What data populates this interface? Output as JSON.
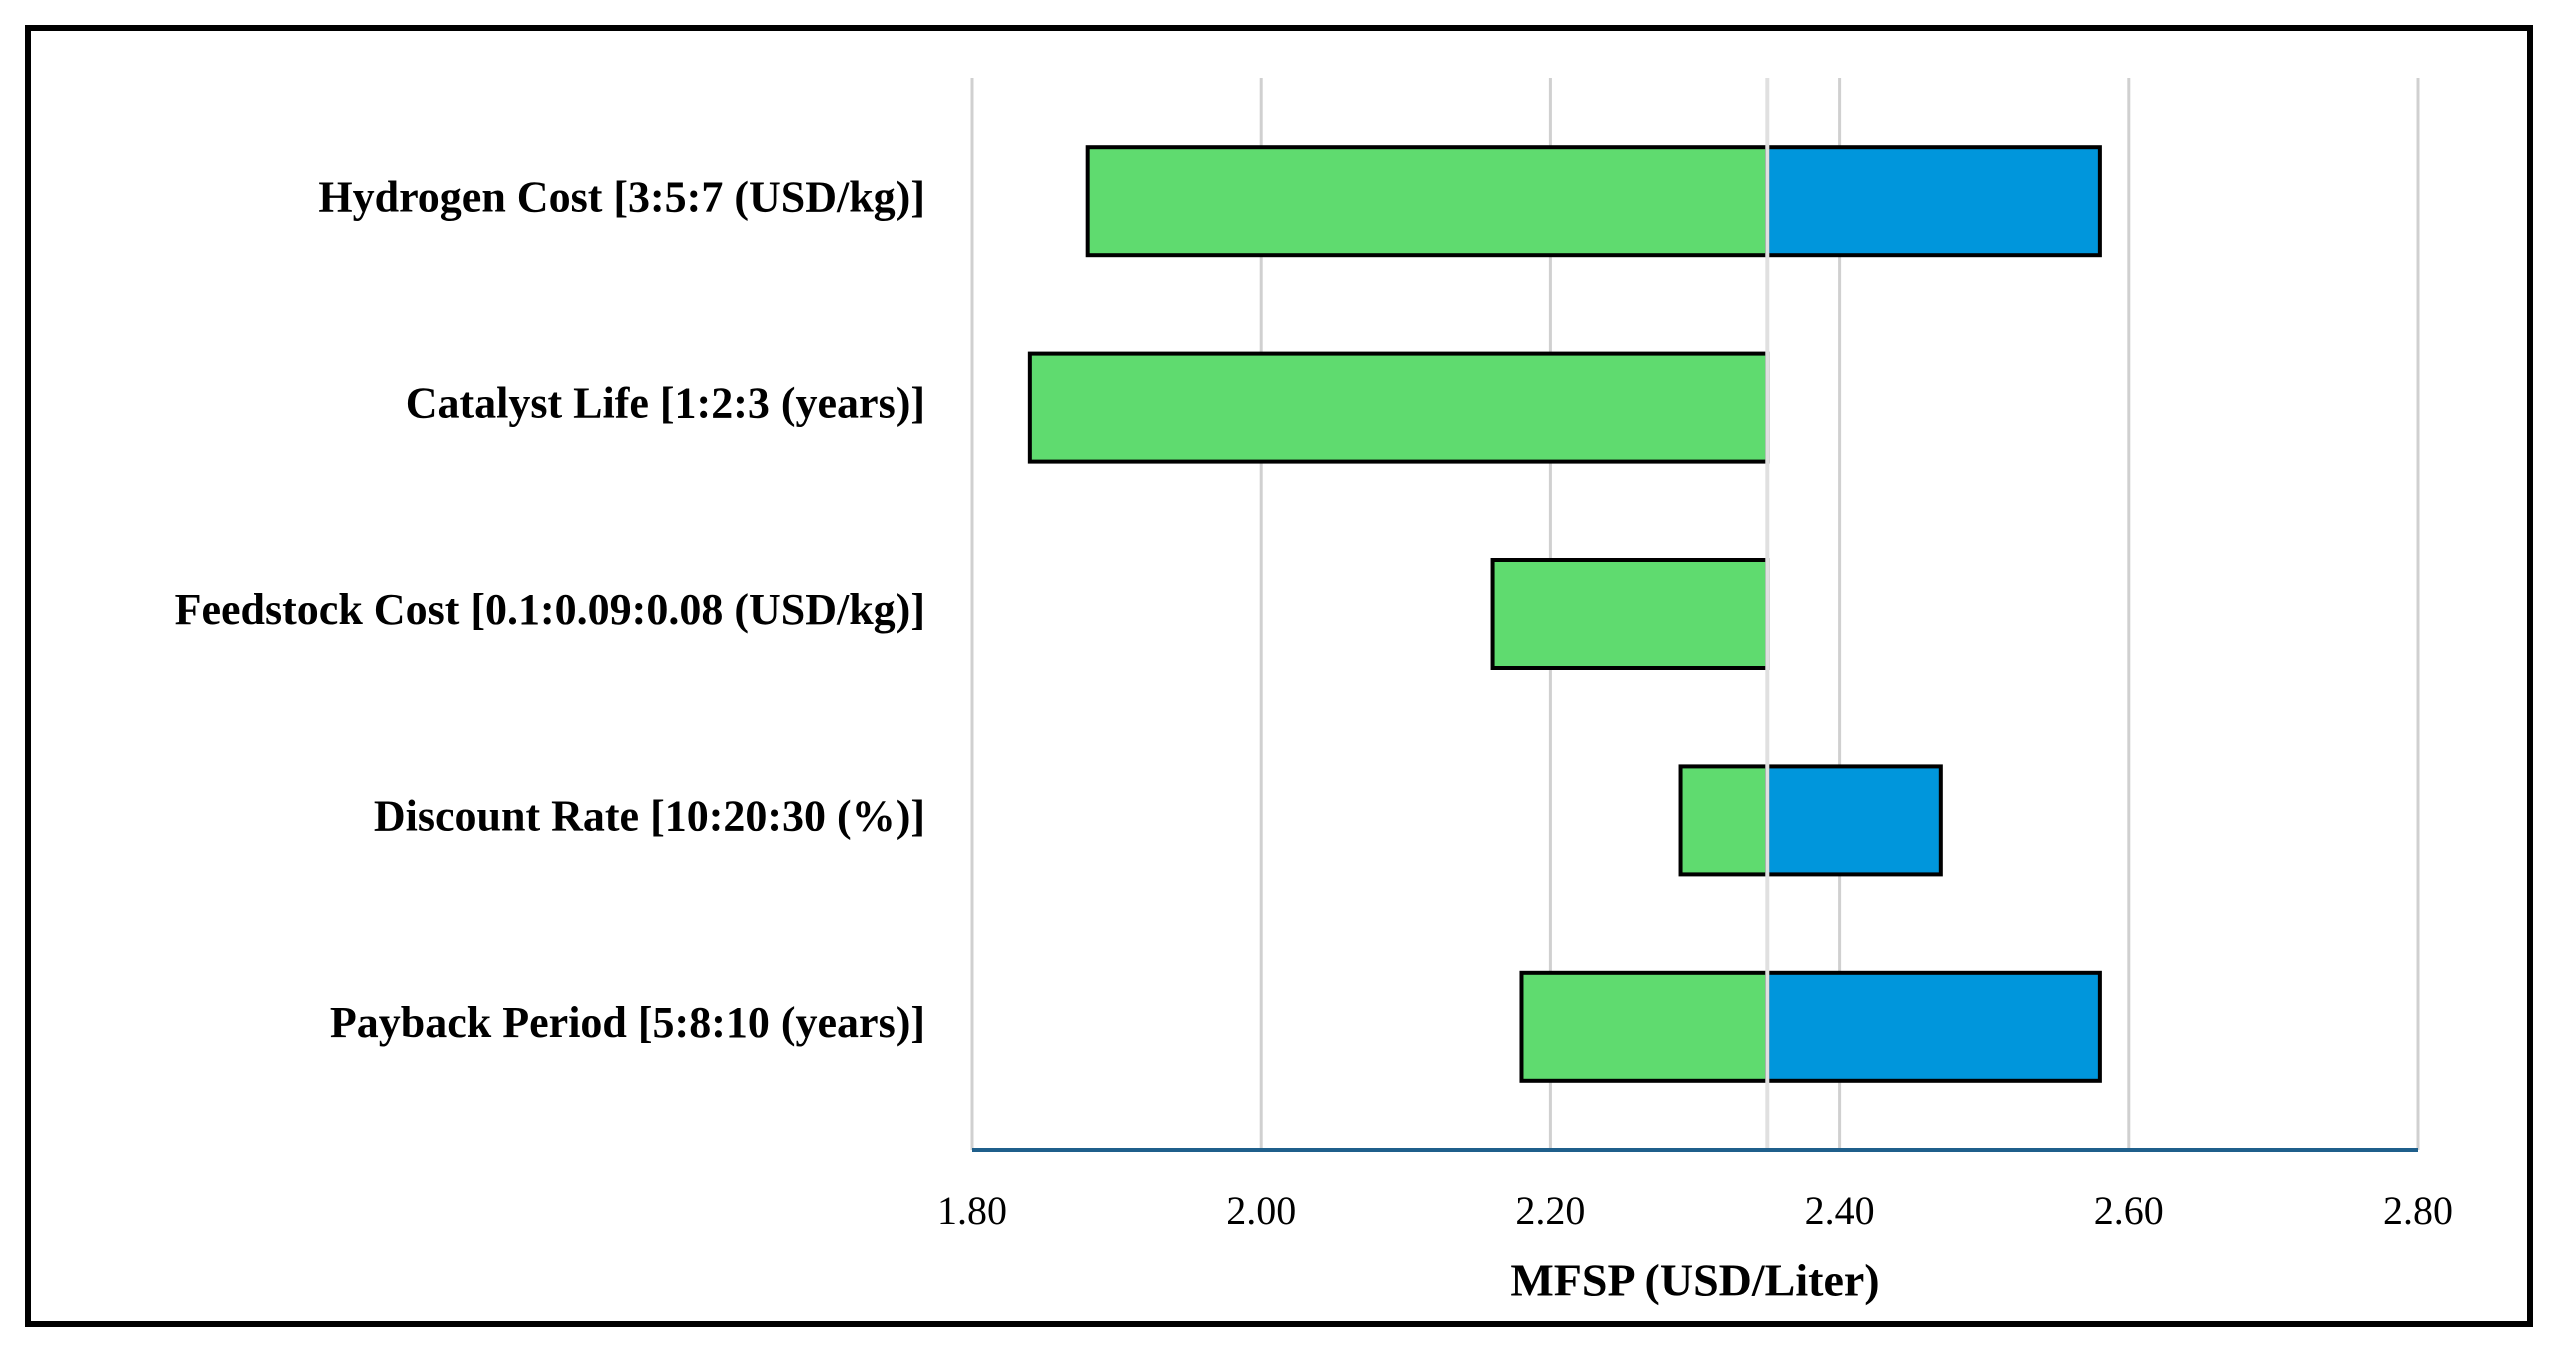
{
  "chart_data": {
    "type": "tornado",
    "x_label": "MFSP (USD/Liter)",
    "categories": [
      "Hydrogen Cost [3:5:7 (USD/kg)]",
      "Catalyst Life [1:2:3 (years)]",
      "Feedstock Cost [0.1:0.09:0.08 (USD/kg)]",
      "Discount Rate [10:20:30 (%)]",
      "Payback Period [5:8:10 (years)]"
    ],
    "base": 2.35,
    "series": [
      {
        "color": "#5fdb6f",
        "values": [
          1.88,
          1.84,
          2.16,
          2.29,
          2.18
        ]
      },
      {
        "color": "#0096dc",
        "values": [
          2.58,
          null,
          null,
          2.47,
          2.58
        ]
      }
    ],
    "xlim": [
      1.8,
      2.8
    ],
    "xticks": [
      {
        "value": 1.8,
        "label": "1.80"
      },
      {
        "value": 2.0,
        "label": "2.00"
      },
      {
        "value": 2.2,
        "label": "2.20"
      },
      {
        "value": 2.4,
        "label": "2.40"
      },
      {
        "value": 2.6,
        "label": "2.60"
      },
      {
        "value": 2.8,
        "label": "2.80"
      }
    ],
    "grid": true
  }
}
